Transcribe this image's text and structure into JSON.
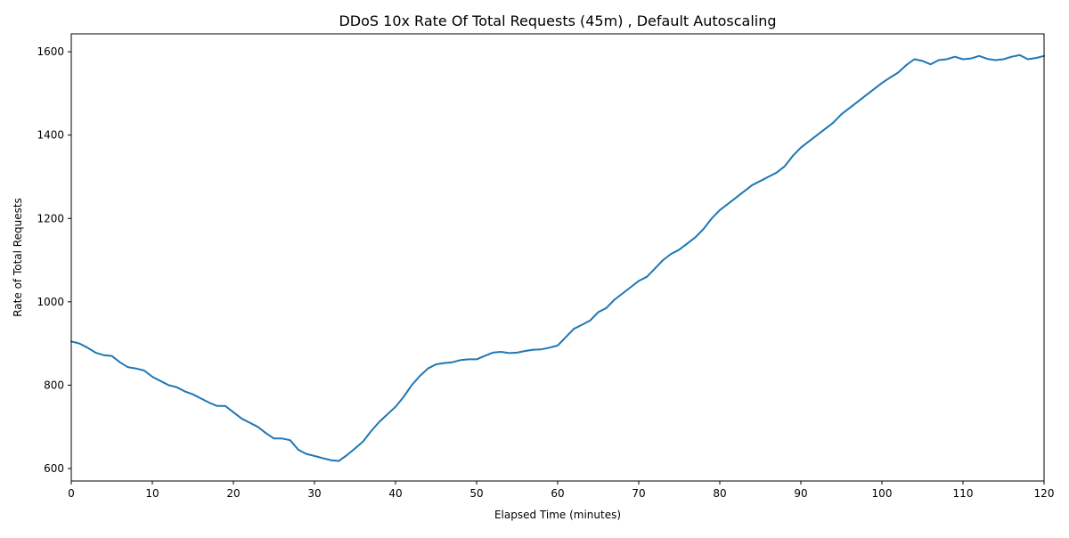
{
  "chart_data": {
    "type": "line",
    "title": "DDoS 10x Rate Of Total Requests (45m) , Default Autoscaling",
    "xlabel": "Elapsed Time (minutes)",
    "ylabel": "Rate of Total Requests",
    "xlim": [
      0,
      120
    ],
    "ylim": [
      570,
      1643
    ],
    "xticks": [
      0,
      10,
      20,
      30,
      40,
      50,
      60,
      70,
      80,
      90,
      100,
      110,
      120
    ],
    "yticks": [
      600,
      800,
      1000,
      1200,
      1400,
      1600
    ],
    "grid": false,
    "legend": "none",
    "line_color": "#1f77b4",
    "series": [
      {
        "x": [
          0,
          1,
          2,
          3,
          4,
          5,
          6,
          7,
          8,
          9,
          10,
          11,
          12,
          13,
          14,
          15,
          16,
          17,
          18,
          19,
          20,
          21,
          22,
          23,
          24,
          25,
          26,
          27,
          28,
          29,
          30,
          31,
          32,
          33,
          34,
          35,
          36,
          37,
          38,
          39,
          40,
          41,
          42,
          43,
          44,
          45,
          46,
          47,
          48,
          49,
          50,
          51,
          52,
          53,
          54,
          55,
          56,
          57,
          58,
          59,
          60,
          61,
          62,
          63,
          64,
          65,
          66,
          67,
          68,
          69,
          70,
          71,
          72,
          73,
          74,
          75,
          76,
          77,
          78,
          79,
          80,
          81,
          82,
          83,
          84,
          85,
          86,
          87,
          88,
          89,
          90,
          91,
          92,
          93,
          94,
          95,
          96,
          97,
          98,
          99,
          100,
          101,
          102,
          103,
          104,
          105,
          106,
          107,
          108,
          109,
          110,
          111,
          112,
          113,
          114,
          115,
          116,
          117,
          118,
          119,
          120
        ],
        "values": [
          905,
          900,
          890,
          878,
          872,
          870,
          855,
          843,
          840,
          835,
          820,
          810,
          800,
          795,
          785,
          778,
          768,
          758,
          750,
          750,
          735,
          720,
          710,
          700,
          685,
          672,
          672,
          668,
          645,
          635,
          630,
          625,
          620,
          618,
          632,
          648,
          665,
          690,
          712,
          730,
          748,
          772,
          800,
          822,
          840,
          850,
          853,
          855,
          860,
          862,
          862,
          870,
          878,
          880,
          877,
          878,
          882,
          885,
          886,
          890,
          895,
          915,
          935,
          945,
          955,
          975,
          985,
          1005,
          1020,
          1035,
          1050,
          1060,
          1080,
          1100,
          1115,
          1125,
          1140,
          1155,
          1175,
          1200,
          1220,
          1235,
          1250,
          1265,
          1280,
          1290,
          1300,
          1310,
          1325,
          1350,
          1370,
          1385,
          1400,
          1415,
          1430,
          1450,
          1465,
          1480,
          1495,
          1510,
          1525,
          1538,
          1550,
          1568,
          1582,
          1578,
          1570,
          1580,
          1582,
          1588,
          1582,
          1584,
          1590,
          1583,
          1580,
          1582,
          1588,
          1592,
          1582,
          1585,
          1590
        ]
      }
    ]
  }
}
